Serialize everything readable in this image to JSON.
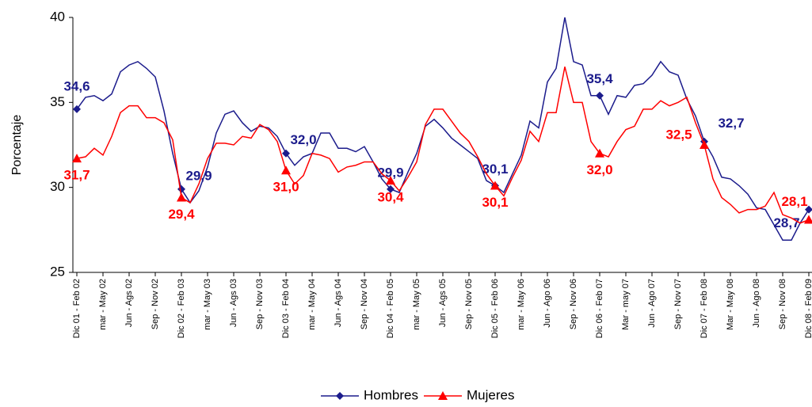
{
  "chart_data": {
    "type": "line",
    "y_label": "Porcentaje",
    "categories": [
      "Dic 01 - Feb 02",
      null,
      null,
      "mar - May 02",
      null,
      null,
      "Jun - Ags 02",
      null,
      null,
      "Sep - Nov 02",
      null,
      null,
      "Dic 02 - Feb 03",
      null,
      null,
      "mar - May 03",
      null,
      null,
      "Jun - Ags 03",
      null,
      null,
      "Sep - Nov 03",
      null,
      null,
      "Dic 03 - Feb 04",
      null,
      null,
      "mar - May 04",
      null,
      null,
      "Jun - Ags 04",
      null,
      null,
      "Sep - Nov 04",
      null,
      null,
      "Dic 04 - Feb 05",
      null,
      null,
      "mar - May 05",
      null,
      null,
      "Jun - Ags 05",
      null,
      null,
      "Sep - Nov 05",
      null,
      null,
      "Dic 05 - Feb 06",
      null,
      null,
      "mar - May 06",
      null,
      null,
      "Jun - Ago 06",
      null,
      null,
      "Sep - Nov 06",
      null,
      null,
      "Dic  06 - Feb 07",
      null,
      null,
      "Mar - may 07",
      null,
      null,
      "Jun - Ago 07",
      null,
      null,
      "Sep - Nov 07",
      null,
      null,
      "Dic 07 - Feb 08",
      null,
      null,
      "Mar - May 08",
      null,
      null,
      "Jun - Ago 08",
      null,
      null,
      "Sep - Nov 08",
      null,
      null,
      "Dic 08 - Feb 09"
    ],
    "series": [
      {
        "name": "Hombres",
        "color": "#1c1c8c",
        "marker": "diamond",
        "values": [
          34.6,
          35.3,
          35.4,
          35.1,
          35.5,
          36.8,
          37.2,
          37.4,
          37.0,
          36.5,
          34.5,
          32.0,
          29.9,
          29.1,
          29.8,
          31.2,
          33.2,
          34.3,
          34.5,
          33.8,
          33.3,
          33.6,
          33.5,
          33.0,
          32.0,
          31.3,
          31.8,
          32.0,
          33.2,
          33.2,
          32.3,
          32.3,
          32.1,
          32.4,
          31.5,
          30.5,
          29.9,
          29.7,
          30.9,
          32.0,
          33.6,
          34.0,
          33.5,
          32.9,
          32.5,
          32.1,
          31.7,
          30.4,
          30.1,
          29.7,
          30.8,
          31.9,
          33.9,
          33.5,
          36.2,
          37.0,
          40.0,
          37.4,
          37.2,
          35.4,
          35.4,
          34.3,
          35.4,
          35.3,
          36.0,
          36.1,
          36.6,
          37.4,
          36.8,
          36.6,
          35.2,
          34.2,
          32.7,
          31.8,
          30.6,
          30.5,
          30.1,
          29.6,
          28.8,
          28.7,
          27.8,
          26.9,
          26.9,
          27.9,
          28.7
        ],
        "value_labels": [
          "34,6",
          null,
          null,
          null,
          null,
          null,
          null,
          null,
          null,
          null,
          null,
          null,
          "29,9",
          null,
          null,
          null,
          null,
          null,
          null,
          null,
          null,
          null,
          null,
          null,
          "32,0",
          null,
          null,
          null,
          null,
          null,
          null,
          null,
          null,
          null,
          null,
          null,
          "29,9",
          null,
          null,
          null,
          null,
          null,
          null,
          null,
          null,
          null,
          null,
          null,
          "30,1",
          null,
          null,
          null,
          null,
          null,
          null,
          null,
          null,
          null,
          null,
          null,
          "35,4",
          null,
          null,
          null,
          null,
          null,
          null,
          null,
          null,
          null,
          null,
          null,
          "32,7",
          null,
          null,
          null,
          null,
          null,
          null,
          null,
          null,
          null,
          null,
          null,
          "28,7"
        ]
      },
      {
        "name": "Mujeres",
        "color": "#ff0000",
        "marker": "triangle",
        "values": [
          31.7,
          31.8,
          32.3,
          31.9,
          33.0,
          34.4,
          34.8,
          34.8,
          34.1,
          34.1,
          33.8,
          32.8,
          29.4,
          29.1,
          30.2,
          31.7,
          32.6,
          32.6,
          32.5,
          33.0,
          32.9,
          33.7,
          33.4,
          32.7,
          31.0,
          30.2,
          30.7,
          32.0,
          31.9,
          31.7,
          30.9,
          31.2,
          31.3,
          31.5,
          31.5,
          30.8,
          30.4,
          29.8,
          30.6,
          31.5,
          33.7,
          34.6,
          34.6,
          33.9,
          33.2,
          32.7,
          31.8,
          30.8,
          30.1,
          29.5,
          30.6,
          31.6,
          33.3,
          32.7,
          34.4,
          34.4,
          37.1,
          35.0,
          35.0,
          32.7,
          32.0,
          31.8,
          32.7,
          33.4,
          33.6,
          34.6,
          34.6,
          35.1,
          34.8,
          35.0,
          35.3,
          33.8,
          32.5,
          30.5,
          29.4,
          29.0,
          28.5,
          28.7,
          28.7,
          28.9,
          29.7,
          28.4,
          28.2,
          27.9,
          28.1
        ],
        "value_labels": [
          "31,7",
          null,
          null,
          null,
          null,
          null,
          null,
          null,
          null,
          null,
          null,
          null,
          "29,4",
          null,
          null,
          null,
          null,
          null,
          null,
          null,
          null,
          null,
          null,
          null,
          "31,0",
          null,
          null,
          null,
          null,
          null,
          null,
          null,
          null,
          null,
          null,
          null,
          "30,4",
          null,
          null,
          null,
          null,
          null,
          null,
          null,
          null,
          null,
          null,
          null,
          "30,1",
          null,
          null,
          null,
          null,
          null,
          null,
          null,
          null,
          null,
          null,
          null,
          "32,0",
          null,
          null,
          null,
          null,
          null,
          null,
          null,
          null,
          null,
          null,
          null,
          "32,5",
          null,
          null,
          null,
          null,
          null,
          null,
          null,
          null,
          null,
          null,
          null,
          "28,1"
        ]
      }
    ],
    "ylim": [
      25,
      40
    ],
    "yticks": [
      25,
      30,
      35,
      40
    ],
    "grid": false,
    "legend": "bottom"
  }
}
